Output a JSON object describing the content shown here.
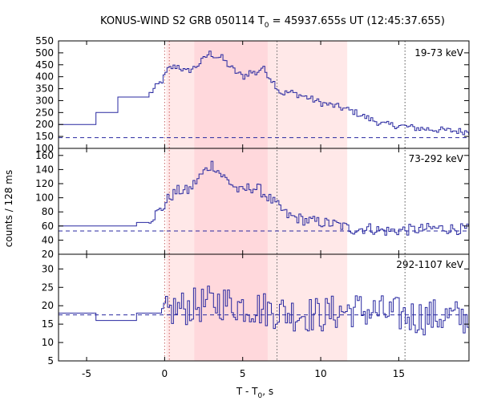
{
  "chart_data": {
    "type": "line",
    "title_main": "KONUS-WIND S2 GRB 050114 T",
    "title_sub": "0",
    "title_rest": " = 45937.655s UT (12:45:37.655)",
    "xlabel_main": "T - T",
    "xlabel_sub": "0",
    "xlabel_rest": ", s",
    "ylabel": "counts / 128 ms",
    "xlim": [
      -6.8,
      19.5
    ],
    "x_ticks": [
      -5,
      0,
      5,
      10,
      15
    ],
    "shaded_regions": [
      {
        "x0": 0.1,
        "x1": 11.7,
        "color": "#ffe8e8"
      },
      {
        "x0": 1.9,
        "x1": 6.6,
        "color": "#ffd8dc"
      }
    ],
    "marker_lines": [
      {
        "x": 0.0,
        "color": "#c86464"
      },
      {
        "x": 0.3,
        "color": "#c86464"
      },
      {
        "x": 7.2,
        "color": "#666666"
      },
      {
        "x": 15.4,
        "color": "#555555"
      }
    ],
    "line_color": "#2828a0",
    "panels": [
      {
        "label": "19-73 keV",
        "ylim": [
          100,
          550
        ],
        "y_ticks": [
          100,
          150,
          200,
          250,
          300,
          350,
          400,
          450,
          500,
          550
        ],
        "background": 145,
        "coarse_steps": [
          [
            -6.8,
            200
          ],
          [
            -4.4,
            250
          ],
          [
            -3.0,
            315
          ],
          [
            -1.8,
            315
          ]
        ],
        "anchors": [
          [
            -1.0,
            330
          ],
          [
            -0.2,
            385
          ],
          [
            0.2,
            435
          ],
          [
            0.8,
            445
          ],
          [
            1.3,
            420
          ],
          [
            1.9,
            440
          ],
          [
            2.4,
            470
          ],
          [
            2.8,
            500
          ],
          [
            3.2,
            485
          ],
          [
            3.6,
            480
          ],
          [
            4.0,
            450
          ],
          [
            4.5,
            420
          ],
          [
            5.0,
            400
          ],
          [
            5.4,
            420
          ],
          [
            5.8,
            415
          ],
          [
            6.2,
            440
          ],
          [
            6.6,
            405
          ],
          [
            7.0,
            370
          ],
          [
            7.4,
            330
          ],
          [
            8.0,
            335
          ],
          [
            9.0,
            315
          ],
          [
            10.0,
            290
          ],
          [
            11.0,
            275
          ],
          [
            12.0,
            255
          ],
          [
            13.0,
            225
          ],
          [
            14.0,
            200
          ],
          [
            15.0,
            195
          ],
          [
            16.0,
            185
          ],
          [
            17.0,
            180
          ],
          [
            18.0,
            175
          ],
          [
            19.5,
            170
          ]
        ],
        "noise": 14
      },
      {
        "label": "73-292 keV",
        "ylim": [
          20,
          170
        ],
        "y_ticks": [
          20,
          40,
          60,
          80,
          100,
          120,
          140,
          160
        ],
        "background": 53,
        "coarse_steps": [
          [
            -6.8,
            60
          ],
          [
            -1.8,
            65
          ]
        ],
        "anchors": [
          [
            -1.0,
            70
          ],
          [
            -0.2,
            85
          ],
          [
            0.2,
            100
          ],
          [
            0.8,
            110
          ],
          [
            1.5,
            110
          ],
          [
            2.0,
            125
          ],
          [
            2.6,
            140
          ],
          [
            3.0,
            148
          ],
          [
            3.6,
            132
          ],
          [
            4.2,
            120
          ],
          [
            4.8,
            108
          ],
          [
            5.4,
            115
          ],
          [
            6.0,
            112
          ],
          [
            6.6,
            100
          ],
          [
            7.2,
            88
          ],
          [
            7.8,
            75
          ],
          [
            9.0,
            68
          ],
          [
            10.0,
            65
          ],
          [
            11.0,
            62
          ],
          [
            12.0,
            55
          ],
          [
            13.0,
            57
          ],
          [
            14.0,
            53
          ],
          [
            16.0,
            55
          ],
          [
            17.5,
            57
          ],
          [
            19.5,
            55
          ]
        ],
        "noise": 8
      },
      {
        "label": "292-1107 keV",
        "ylim": [
          5,
          34
        ],
        "y_ticks": [
          5,
          10,
          15,
          20,
          25,
          30
        ],
        "background": 17.5,
        "coarse_steps": [
          [
            -6.8,
            18
          ],
          [
            -4.4,
            16
          ],
          [
            -1.8,
            18
          ]
        ],
        "anchors": [
          [
            -0.2,
            17
          ],
          [
            0.5,
            19
          ],
          [
            2.0,
            20
          ],
          [
            3.5,
            21
          ],
          [
            5.0,
            20
          ],
          [
            6.5,
            19
          ],
          [
            8.0,
            18
          ],
          [
            10.0,
            17.5
          ],
          [
            12.0,
            19
          ],
          [
            14.0,
            18
          ],
          [
            16.0,
            17
          ],
          [
            18.0,
            17
          ],
          [
            19.5,
            16.5
          ]
        ],
        "noise": 5
      }
    ]
  },
  "styling": {
    "title_color": "#000000",
    "axis_color": "#000000",
    "background_line_color": "#2828a0"
  }
}
